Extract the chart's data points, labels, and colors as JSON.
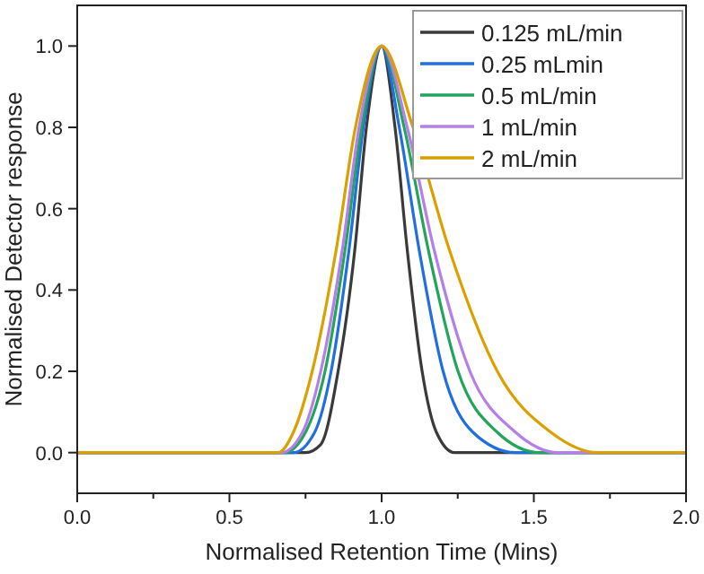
{
  "chart_data": {
    "type": "line",
    "xlabel": "Normalised Retention Time (Mins)",
    "ylabel": "Normalised Detector response",
    "xlim": [
      0,
      2
    ],
    "ylim": [
      -0.1,
      1.1
    ],
    "xticks": [
      {
        "value": 0,
        "label": "0.0"
      },
      {
        "value": 0.25,
        "label": null
      },
      {
        "value": 0.5,
        "label": "0.5"
      },
      {
        "value": 0.75,
        "label": null
      },
      {
        "value": 1,
        "label": "1.0"
      },
      {
        "value": 1.25,
        "label": null
      },
      {
        "value": 1.5,
        "label": "1.5"
      },
      {
        "value": 1.75,
        "label": null
      },
      {
        "value": 2,
        "label": "2.0"
      }
    ],
    "yticks": [
      {
        "value": 0,
        "label": "0.0"
      },
      {
        "value": 0.2,
        "label": "0.2"
      },
      {
        "value": 0.4,
        "label": "0.4"
      },
      {
        "value": 0.6,
        "label": "0.6"
      },
      {
        "value": 0.8,
        "label": "0.8"
      },
      {
        "value": 1,
        "label": "1.0"
      }
    ],
    "grid": false,
    "legend": "top right",
    "marker": "none",
    "line_style": "solid",
    "series": [
      {
        "name": "0.125 mL/min",
        "color": "#3a3a3a",
        "x": [
          0,
          0.75,
          0.8,
          0.857,
          0.912,
          0.95,
          1,
          1.044,
          1.084,
          1.133,
          1.18,
          1.24,
          2
        ],
        "values": [
          0,
          0,
          0.02,
          0.2,
          0.5,
          0.8,
          1,
          0.8,
          0.5,
          0.2,
          0.05,
          0,
          0
        ]
      },
      {
        "name": "0.25 mLmin",
        "color": "#1f6fe0",
        "x": [
          0,
          0.71,
          0.78,
          0.834,
          0.893,
          0.94,
          1,
          1.058,
          1.123,
          1.202,
          1.3,
          1.44,
          2
        ],
        "values": [
          0,
          0,
          0.05,
          0.2,
          0.5,
          0.8,
          1,
          0.8,
          0.5,
          0.2,
          0.05,
          0,
          0
        ]
      },
      {
        "name": "0.5 mL/min",
        "color": "#22a55a",
        "x": [
          0,
          0.68,
          0.75,
          0.814,
          0.88,
          0.934,
          1,
          1.074,
          1.153,
          1.251,
          1.38,
          1.52,
          2
        ],
        "values": [
          0,
          0,
          0.05,
          0.2,
          0.5,
          0.8,
          1,
          0.8,
          0.5,
          0.2,
          0.05,
          0,
          0
        ]
      },
      {
        "name": "1 mL/min",
        "color": "#b57ee8",
        "x": [
          0,
          0.67,
          0.74,
          0.8,
          0.871,
          0.926,
          1,
          1.084,
          1.172,
          1.29,
          1.44,
          1.58,
          2
        ],
        "values": [
          0,
          0,
          0.05,
          0.2,
          0.5,
          0.8,
          1,
          0.8,
          0.5,
          0.2,
          0.05,
          0,
          0
        ]
      },
      {
        "name": "2 mL/min",
        "color": "#d9a000",
        "x": [
          0,
          0.66,
          0.71,
          0.772,
          0.851,
          0.914,
          1,
          1.103,
          1.222,
          1.38,
          1.556,
          1.71,
          2
        ],
        "values": [
          0,
          0,
          0.05,
          0.2,
          0.5,
          0.8,
          1,
          0.8,
          0.5,
          0.2,
          0.05,
          0,
          0
        ]
      }
    ]
  }
}
